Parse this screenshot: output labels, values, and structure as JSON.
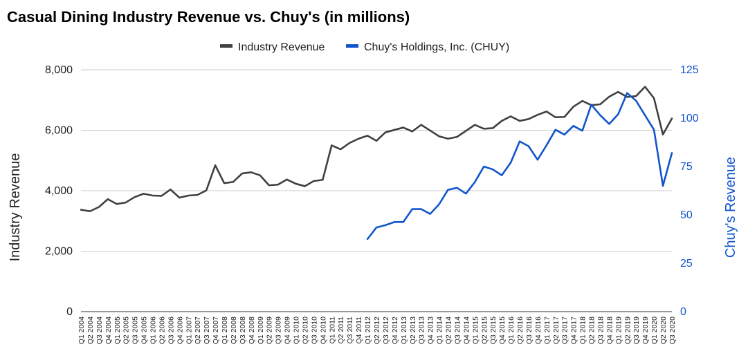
{
  "chart_data": {
    "type": "line",
    "title": "Casual Dining Industry Revenue vs. Chuy's (in millions)",
    "ylabel_left": "Industry Revenue",
    "ylabel_right": "Chuy's Revenue",
    "ylim_left": [
      0,
      8000
    ],
    "ylim_right": [
      0,
      125
    ],
    "yticks_left": [
      "0",
      "2,000",
      "4,000",
      "6,000",
      "8,000"
    ],
    "yticks_right": [
      "0",
      "25",
      "50",
      "75",
      "100",
      "125"
    ],
    "grid": true,
    "legend_position": "top",
    "categories": [
      "Q1 2004",
      "Q2 2004",
      "Q3 2004",
      "Q4 2004",
      "Q1 2005",
      "Q2 2005",
      "Q3 2005",
      "Q4 2005",
      "Q1 2006",
      "Q2 2006",
      "Q3 2006",
      "Q4 2006",
      "Q1 2007",
      "Q2 2007",
      "Q3 2007",
      "Q4 2007",
      "Q1 2008",
      "Q2 2008",
      "Q3 2008",
      "Q4 2008",
      "Q1 2009",
      "Q2 2009",
      "Q3 2009",
      "Q4 2009",
      "Q1 2010",
      "Q2 2010",
      "Q3 2010",
      "Q4 2010",
      "Q1 2011",
      "Q2 2011",
      "Q3 2011",
      "Q4 2011",
      "Q1 2012",
      "Q2 2012",
      "Q3 2012",
      "Q4 2012",
      "Q1 2013",
      "Q2 2013",
      "Q3 2013",
      "Q4 2013",
      "Q1 2014",
      "Q2 2014",
      "Q3 2014",
      "Q4 2014",
      "Q1 2015",
      "Q2 2015",
      "Q3 2015",
      "Q4 2015",
      "Q1 2016",
      "Q2 2016",
      "Q3 2016",
      "Q4 2016",
      "Q1 2017",
      "Q2 2017",
      "Q3 2017",
      "Q4 2017",
      "Q1 2018",
      "Q2 2018",
      "Q3 2018",
      "Q4 2018",
      "Q1 2019",
      "Q2 2019",
      "Q3 2019",
      "Q4 2019",
      "Q1 2020",
      "Q2 2020",
      "Q3 2020"
    ],
    "series": [
      {
        "name": "Industry Revenue",
        "axis": "left",
        "color": "#404040",
        "values": [
          3370,
          3320,
          3460,
          3720,
          3560,
          3610,
          3790,
          3900,
          3840,
          3830,
          4040,
          3770,
          3840,
          3860,
          4010,
          4840,
          4250,
          4290,
          4570,
          4610,
          4510,
          4180,
          4200,
          4370,
          4230,
          4150,
          4320,
          4360,
          5500,
          5370,
          5580,
          5720,
          5820,
          5650,
          5930,
          6010,
          6090,
          5960,
          6180,
          5990,
          5800,
          5720,
          5780,
          5980,
          6180,
          6050,
          6070,
          6310,
          6460,
          6310,
          6370,
          6510,
          6620,
          6430,
          6440,
          6780,
          6970,
          6830,
          6860,
          7110,
          7270,
          7100,
          7130,
          7440,
          7060,
          5860,
          6390
        ]
      },
      {
        "name": "Chuy's Holdings, Inc. (CHUY)",
        "axis": "right",
        "color": "#1155cc",
        "values": [
          null,
          null,
          null,
          null,
          null,
          null,
          null,
          null,
          null,
          null,
          null,
          null,
          null,
          null,
          null,
          null,
          null,
          null,
          null,
          null,
          null,
          null,
          null,
          null,
          null,
          null,
          null,
          null,
          null,
          null,
          null,
          null,
          37.5,
          43.5,
          44.7,
          46.3,
          46.3,
          53,
          53,
          50.5,
          55.5,
          63,
          64,
          61,
          67,
          75,
          73.5,
          70.5,
          77,
          88,
          85.5,
          78.5,
          86,
          94,
          91.5,
          96,
          93.5,
          107,
          101.5,
          97,
          102,
          113,
          109,
          101.5,
          94,
          65,
          82
        ]
      }
    ]
  }
}
